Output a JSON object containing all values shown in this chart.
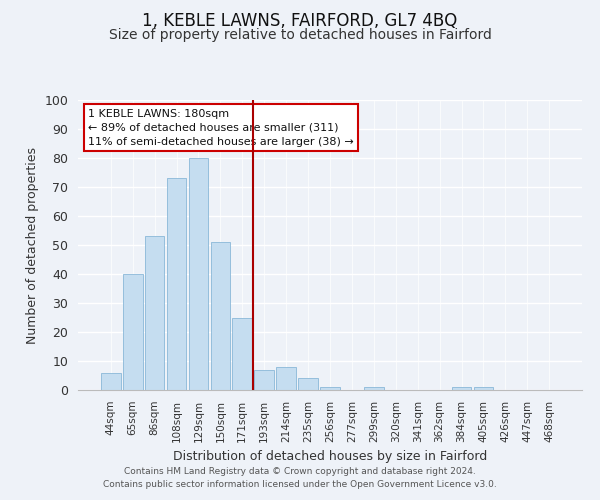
{
  "title": "1, KEBLE LAWNS, FAIRFORD, GL7 4BQ",
  "subtitle": "Size of property relative to detached houses in Fairford",
  "xlabel": "Distribution of detached houses by size in Fairford",
  "ylabel": "Number of detached properties",
  "bar_labels": [
    "44sqm",
    "65sqm",
    "86sqm",
    "108sqm",
    "129sqm",
    "150sqm",
    "171sqm",
    "193sqm",
    "214sqm",
    "235sqm",
    "256sqm",
    "277sqm",
    "299sqm",
    "320sqm",
    "341sqm",
    "362sqm",
    "384sqm",
    "405sqm",
    "426sqm",
    "447sqm",
    "468sqm"
  ],
  "bar_values": [
    6,
    40,
    53,
    73,
    80,
    51,
    25,
    7,
    8,
    4,
    1,
    0,
    1,
    0,
    0,
    0,
    1,
    1,
    0,
    0,
    0
  ],
  "bar_color": "#c5ddf0",
  "bar_edge_color": "#8ab8d8",
  "vline_x_index": 7,
  "vline_color": "#aa0000",
  "ylim": [
    0,
    100
  ],
  "annotation_text": "1 KEBLE LAWNS: 180sqm\n← 89% of detached houses are smaller (311)\n11% of semi-detached houses are larger (38) →",
  "annotation_box_color": "#ffffff",
  "annotation_box_edge_color": "#cc0000",
  "footer_line1": "Contains HM Land Registry data © Crown copyright and database right 2024.",
  "footer_line2": "Contains public sector information licensed under the Open Government Licence v3.0.",
  "bg_color": "#eef2f8",
  "title_fontsize": 12,
  "subtitle_fontsize": 10,
  "axis_label_fontsize": 9,
  "tick_label_fontsize": 7.5,
  "annotation_fontsize": 8,
  "footer_fontsize": 6.5
}
